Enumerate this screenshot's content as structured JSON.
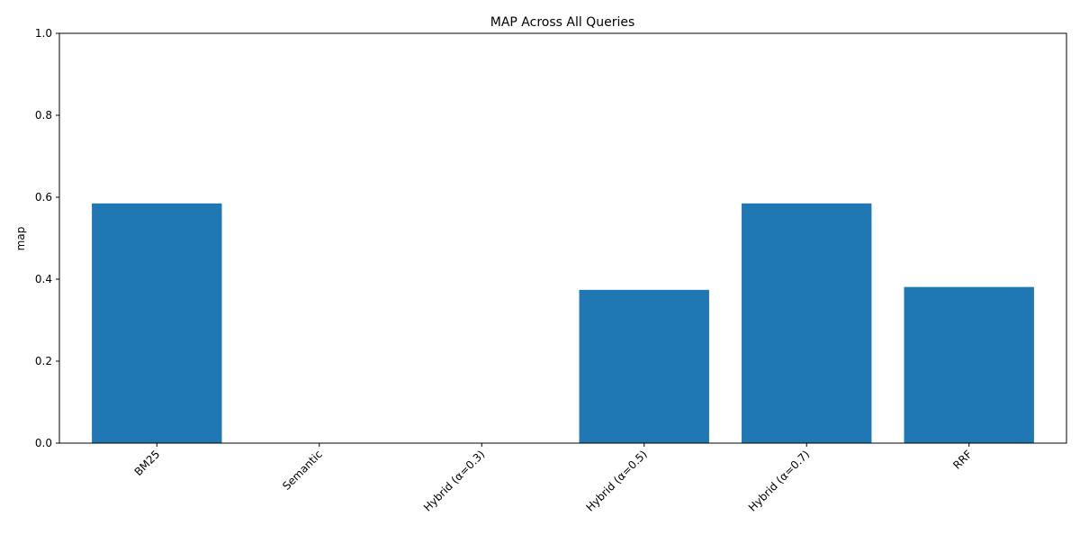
{
  "chart_data": {
    "type": "bar",
    "title": "MAP Across All Queries",
    "xlabel": "",
    "ylabel": "map",
    "categories": [
      "BM25",
      "Semantic",
      "Hybrid (α=0.3)",
      "Hybrid (α=0.5)",
      "Hybrid (α=0.7)",
      "RRF"
    ],
    "values": [
      0.585,
      0.0,
      0.0,
      0.374,
      0.585,
      0.381
    ],
    "ylim": [
      0,
      1.0
    ],
    "yticks": [
      "0.0",
      "0.2",
      "0.4",
      "0.6",
      "0.8",
      "1.0"
    ],
    "bar_color": "#1f77b4",
    "grid": false,
    "legend": "none"
  }
}
